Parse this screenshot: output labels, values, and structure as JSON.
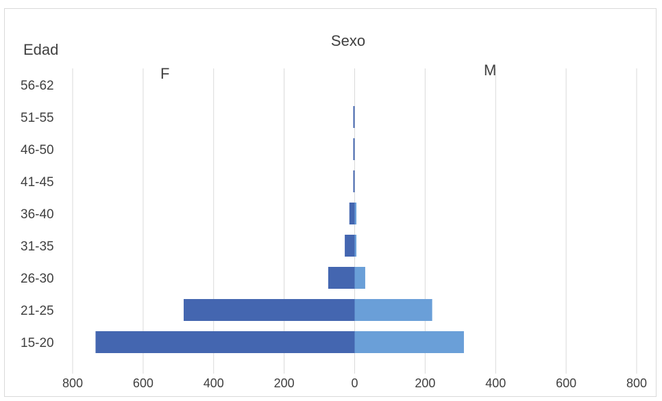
{
  "chart_data": {
    "type": "bar",
    "orientation": "horizontal",
    "title": "Sexo",
    "ylabel": "Edad",
    "categories": [
      "56-62",
      "51-55",
      "46-50",
      "41-45",
      "36-40",
      "31-35",
      "26-30",
      "21-25",
      "15-20"
    ],
    "series": [
      {
        "name": "F",
        "side": "left",
        "color": "#4466b0",
        "values": [
          0,
          2,
          2,
          2,
          15,
          28,
          75,
          485,
          735
        ]
      },
      {
        "name": "M",
        "side": "right",
        "color": "#6a9fd8",
        "values": [
          0,
          0,
          0,
          0,
          5,
          5,
          30,
          220,
          310
        ]
      }
    ],
    "x_ticks": [
      {
        "value": -800,
        "label": "800"
      },
      {
        "value": -600,
        "label": "600"
      },
      {
        "value": -400,
        "label": "400"
      },
      {
        "value": -200,
        "label": "200"
      },
      {
        "value": 0,
        "label": "0"
      },
      {
        "value": 200,
        "label": "200"
      },
      {
        "value": 400,
        "label": "400"
      },
      {
        "value": 600,
        "label": "600"
      },
      {
        "value": 800,
        "label": "800"
      }
    ],
    "xlim": [
      -800,
      800
    ],
    "grid": true,
    "legend": "none",
    "side_labels": [
      "F",
      "M"
    ]
  }
}
